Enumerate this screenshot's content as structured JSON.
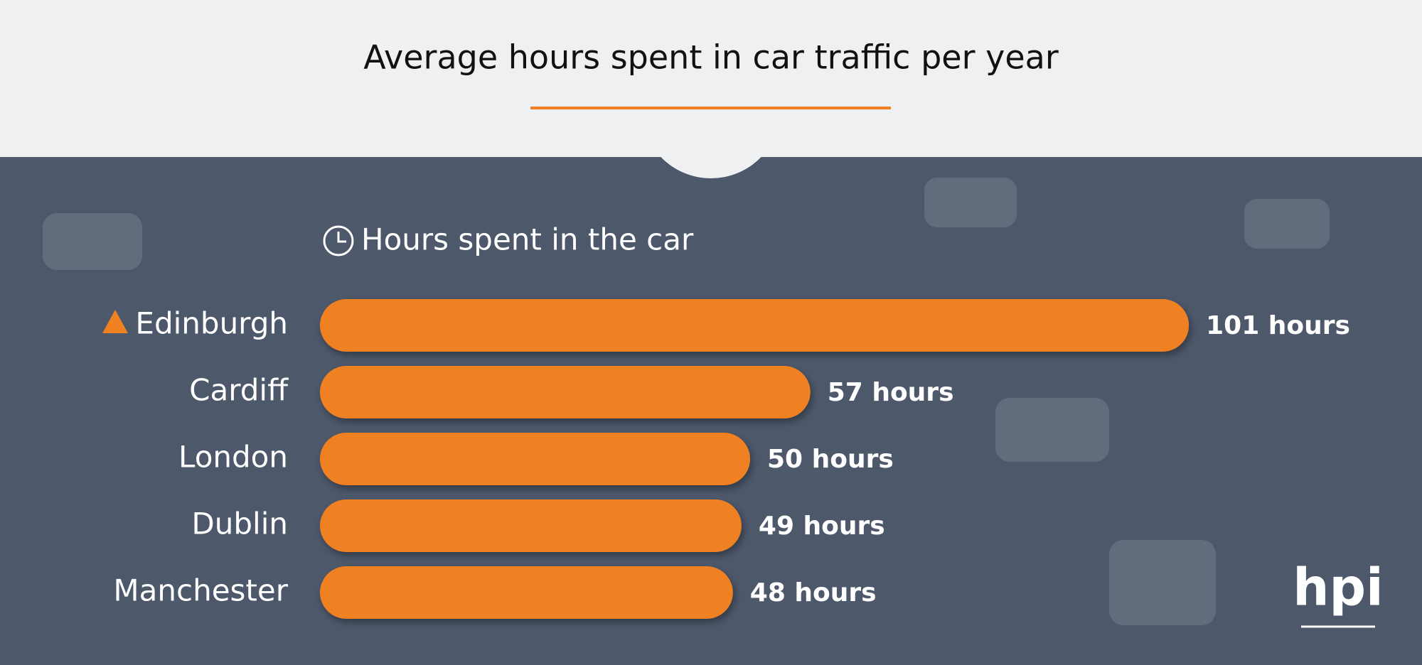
{
  "chart_data": {
    "type": "bar",
    "orientation": "horizontal",
    "title": "Average hours spent in car traffic per year",
    "subtitle": "Hours spent in the car",
    "categories": [
      "Edinburgh",
      "Cardiff",
      "London",
      "Dublin",
      "Manchester"
    ],
    "values": [
      101,
      57,
      50,
      49,
      48
    ],
    "value_labels": [
      "101 hours",
      "57 hours",
      "50 hours",
      "49 hours",
      "48 hours"
    ],
    "color": "#f08122",
    "logo": "hpi"
  }
}
